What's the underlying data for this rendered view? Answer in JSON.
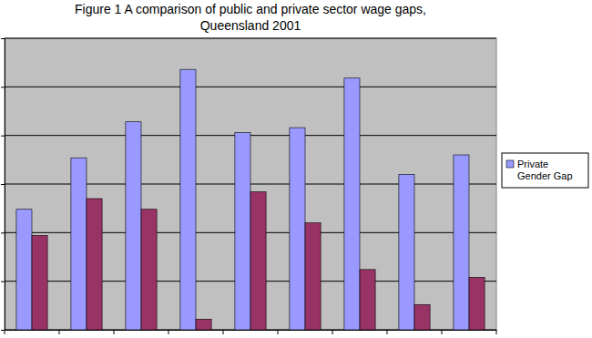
{
  "chart_data": {
    "type": "bar",
    "title": "Figure 1 A comparison of public and private sector wage gaps, Queensland 2001",
    "categories": [
      null,
      null,
      null,
      null,
      null,
      null,
      null,
      null,
      null
    ],
    "series": [
      {
        "name": "Private Gender Gap",
        "color": "#9999ff",
        "values": [
          12.4,
          17.7,
          21.4,
          26.8,
          20.3,
          20.8,
          25.9,
          16.0,
          18.0
        ]
      },
      {
        "color": "#993366",
        "values": [
          9.7,
          13.5,
          12.4,
          1.1,
          14.2,
          11.0,
          6.2,
          2.6,
          5.4
        ]
      }
    ],
    "ylim": [
      0,
      30
    ],
    "yticks": [
      0,
      5,
      10,
      15,
      20,
      25,
      30
    ],
    "grid": true,
    "legend": "right",
    "tick_labels": false
  }
}
